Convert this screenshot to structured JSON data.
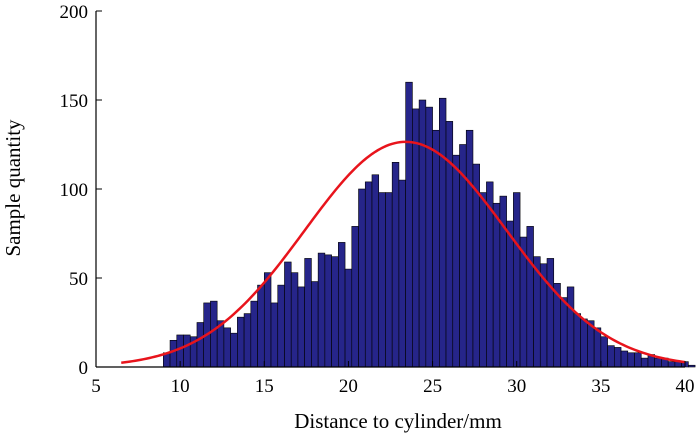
{
  "chart_data": {
    "type": "bar",
    "title": "",
    "xlabel": "Distance to cylinder/mm",
    "ylabel": "Sample quantity",
    "xlim": [
      5,
      40
    ],
    "ylim": [
      0,
      200
    ],
    "xticks": [
      5,
      10,
      15,
      20,
      25,
      30,
      35,
      40
    ],
    "yticks": [
      0,
      50,
      100,
      150,
      200
    ],
    "grid": false,
    "bar_color": "#26258a",
    "bar_edge_color": "#000000",
    "fit_color": "#e8141c",
    "bins": {
      "start": 9.0,
      "width": 0.4,
      "values": [
        8,
        15,
        18,
        18,
        17,
        25,
        36,
        37,
        26,
        22,
        19,
        28,
        30,
        37,
        46,
        53,
        36,
        46,
        59,
        53,
        45,
        61,
        48,
        64,
        63,
        62,
        70,
        55,
        79,
        100,
        104,
        108,
        98,
        98,
        115,
        105,
        160,
        145,
        150,
        146,
        133,
        151,
        138,
        119,
        125,
        133,
        114,
        98,
        104,
        92,
        96,
        82,
        98,
        73,
        79,
        62,
        58,
        61,
        47,
        39,
        45,
        30,
        27,
        26,
        22,
        17,
        12,
        11,
        9,
        8,
        8,
        5,
        7,
        5,
        5,
        3,
        3,
        3,
        1
      ]
    },
    "fit": {
      "type": "normal",
      "mean": 23.4,
      "std": 6.0,
      "peak": 126.5,
      "x_range": [
        6.5,
        40
      ]
    }
  }
}
